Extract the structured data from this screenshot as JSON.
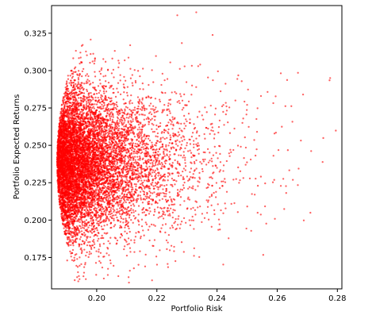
{
  "chart_data": {
    "type": "scatter",
    "title": "",
    "xlabel": "Portfolio Risk",
    "ylabel": "Portfolio Expected Returns",
    "xlim": [
      0.185,
      0.2815
    ],
    "ylim": [
      0.154,
      0.3435
    ],
    "xticks": [
      0.2,
      0.22,
      0.24,
      0.26,
      0.28
    ],
    "xtick_labels": [
      "0.20",
      "0.22",
      "0.24",
      "0.26",
      "0.28"
    ],
    "yticks": [
      0.175,
      0.2,
      0.225,
      0.25,
      0.275,
      0.3,
      0.325
    ],
    "ytick_labels": [
      "0.175",
      "0.200",
      "0.225",
      "0.250",
      "0.275",
      "0.300",
      "0.325"
    ],
    "grid": false,
    "legend": false,
    "marker_color": "#ff0000",
    "series": [
      {
        "points": [
          [
            0.2774,
            0.2935
          ],
          [
            0.2776,
            0.295
          ],
          [
            0.2686,
            0.284
          ],
          [
            0.2669,
            0.2985
          ],
          [
            0.2647,
            0.2762
          ],
          [
            0.2633,
            0.2937
          ],
          [
            0.2612,
            0.2982
          ],
          [
            0.2587,
            0.2782
          ],
          [
            0.2568,
            0.2857
          ],
          [
            0.2546,
            0.283
          ],
          [
            0.2531,
            0.2676
          ],
          [
            0.2503,
            0.2873
          ],
          [
            0.2482,
            0.2929
          ],
          [
            0.2461,
            0.28
          ],
          [
            0.2443,
            0.2582
          ],
          [
            0.2421,
            0.277
          ],
          [
            0.2403,
            0.2995
          ],
          [
            0.2381,
            0.26
          ],
          [
            0.2366,
            0.2722
          ],
          [
            0.2344,
            0.304
          ],
          [
            0.2331,
            0.339
          ],
          [
            0.2317,
            0.29
          ],
          [
            0.2296,
            0.263
          ],
          [
            0.2283,
            0.3184
          ],
          [
            0.2268,
            0.337
          ],
          [
            0.2253,
            0.205
          ],
          [
            0.2236,
            0.213
          ],
          [
            0.2212,
            0.192
          ],
          [
            0.2184,
            0.1597
          ],
          [
            0.2161,
            0.169
          ],
          [
            0.2139,
            0.1701
          ],
          [
            0.2106,
            0.1618
          ],
          [
            0.2072,
            0.1625
          ],
          [
            0.2037,
            0.1633
          ],
          [
            0.1958,
            0.1648
          ],
          [
            0.1935,
            0.1618
          ],
          [
            0.1927,
            0.1598
          ],
          [
            0.1902,
            0.173
          ]
        ]
      }
    ]
  }
}
